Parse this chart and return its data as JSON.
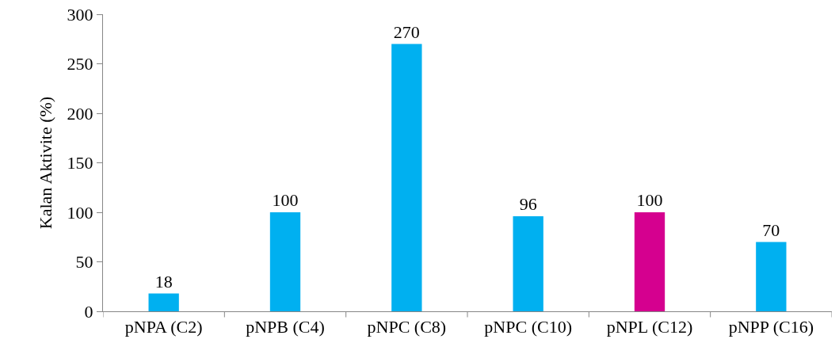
{
  "chart_data": {
    "type": "bar",
    "ylabel": "Kalan Aktivite (%)",
    "categories": [
      "pNPA (C2)",
      "pNPB (C4)",
      "pNPC (C8)",
      "pNPC (C10)",
      "pNPL (C12)",
      "pNPP (C16)"
    ],
    "values": [
      18,
      100,
      270,
      96,
      100,
      70
    ],
    "colors": [
      "#00b0f0",
      "#00b0f0",
      "#00b0f0",
      "#00b0f0",
      "#d5008f",
      "#00b0f0"
    ],
    "ylim": [
      0,
      300
    ],
    "yticks": [
      0,
      50,
      100,
      150,
      200,
      250,
      300
    ],
    "grid": false,
    "legend": false,
    "data_labels": true
  }
}
